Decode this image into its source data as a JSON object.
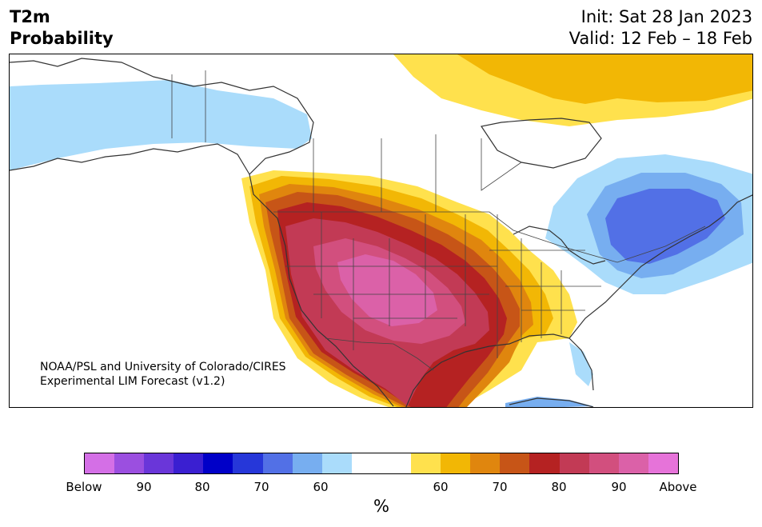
{
  "header": {
    "variable": "T2m",
    "product": "Probability",
    "init": "Init: Sat 28 Jan 2023",
    "valid": "Valid: 12 Feb – 18 Feb"
  },
  "map": {
    "credit_line1": "NOAA/PSL and University of Colorado/CIRES",
    "credit_line2": "Experimental LIM Forecast (v1.2)"
  },
  "colorbar": {
    "units": "%",
    "colors": [
      "#d46fe6",
      "#9b4fe0",
      "#6a36d9",
      "#3a1fd1",
      "#0000c8",
      "#2637d9",
      "#5270e6",
      "#77aef0",
      "#aadcfb",
      "#ffffff",
      "#ffffff",
      "#ffe14d",
      "#f2b705",
      "#e0860e",
      "#c75517",
      "#b52222",
      "#c23a55",
      "#d24f7e",
      "#db61a8",
      "#e673d9"
    ],
    "tick_labels": [
      "Below",
      "90",
      "80",
      "70",
      "60",
      "60",
      "70",
      "80",
      "90",
      "Above"
    ]
  },
  "legend_colors": {
    "below_light": "#aadcfb",
    "below_mid": "#77aef0",
    "below_strong": "#5270e6",
    "above_60": "#ffe14d",
    "above_65": "#f2b705",
    "above_70": "#e0860e",
    "above_75": "#c75517",
    "above_80": "#b52222",
    "above_85": "#c23a55",
    "above_90": "#d24f7e",
    "above_95": "#db61a8"
  }
}
